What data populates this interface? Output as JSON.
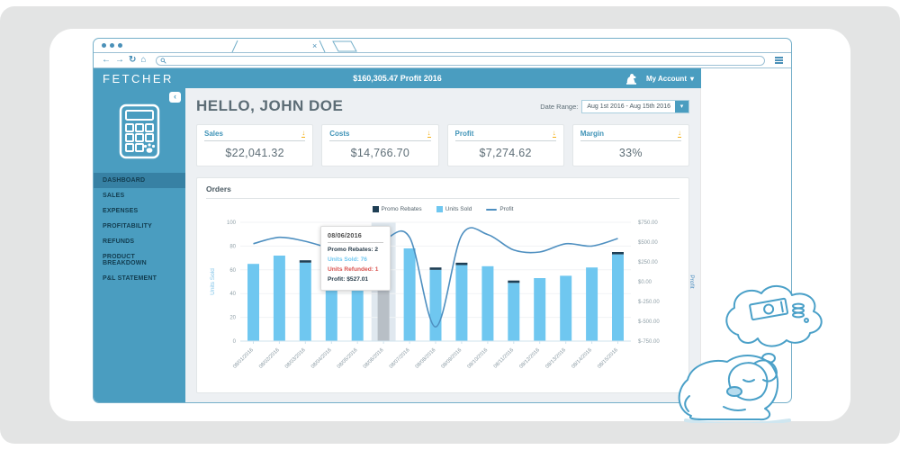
{
  "colors": {
    "teal": "#4a9dc0",
    "teal-dark": "#3781a4",
    "navy": "#1e3e54",
    "bar-blue": "#6fc7f0",
    "line-blue": "#4e8fc0",
    "red": "#d9534f",
    "yellow": "#f2af13",
    "text-gray": "#5c6c75",
    "chrome-blue": "#4a90b8"
  },
  "browser": {
    "tab_close": "×",
    "back_icon": "←",
    "forward_icon": "→",
    "refresh_icon": "↻",
    "home_icon": "⌂",
    "url_value": ""
  },
  "header": {
    "logo": "FETCHER",
    "title": "$160,305.47 Profit 2016",
    "account_label": "My Account",
    "account_chevron": "▾"
  },
  "sidebar": {
    "collapse_icon": "‹",
    "items": [
      {
        "label": "DASHBOARD",
        "active": true
      },
      {
        "label": "SALES",
        "active": false
      },
      {
        "label": "EXPENSES",
        "active": false
      },
      {
        "label": "PROFITABILITY",
        "active": false
      },
      {
        "label": "REFUNDS",
        "active": false
      },
      {
        "label": "PRODUCT BREAKDOWN",
        "active": false
      },
      {
        "label": "P&L STATEMENT",
        "active": false
      }
    ]
  },
  "main": {
    "greeting": "HELLO, JOHN DOE",
    "date_range": {
      "label": "Date Range:",
      "value": "Aug 1st 2016 - Aug 15th 2016",
      "chevron": "▾"
    },
    "kpis": [
      {
        "label": "Sales",
        "value": "$22,041.32"
      },
      {
        "label": "Costs",
        "value": "$14,766.70"
      },
      {
        "label": "Profit",
        "value": "$7,274.62"
      },
      {
        "label": "Margin",
        "value": "33%"
      }
    ],
    "orders_panel_title": "Orders"
  },
  "tooltip": {
    "date": "08/06/2016",
    "lines": [
      {
        "text": "Promo Rebates: 2",
        "color": "#2a3e4c"
      },
      {
        "text": "Units Sold: 76",
        "color": "#6fc7f0"
      },
      {
        "text": "Units Refunded: 1",
        "color": "#d9534f"
      },
      {
        "text": "Profit: $527.01",
        "color": "#2a3e4c"
      }
    ]
  },
  "chart_data": {
    "type": "bar",
    "title": "Orders",
    "categories": [
      "08/01/2016",
      "08/02/2016",
      "08/03/2016",
      "08/04/2016",
      "08/05/2016",
      "08/06/2016",
      "08/07/2016",
      "08/08/2016",
      "08/09/2016",
      "08/10/2016",
      "08/11/2016",
      "08/12/2016",
      "08/13/2016",
      "08/14/2016",
      "08/15/2016"
    ],
    "series": [
      {
        "name": "Promo Rebates",
        "type": "bar-stacked",
        "color": "#1e3e54",
        "axis": "left",
        "values": [
          0,
          0,
          2,
          0,
          0,
          2,
          0,
          2,
          2,
          0,
          2,
          0,
          0,
          0,
          2
        ]
      },
      {
        "name": "Units Sold",
        "type": "bar",
        "color": "#6fc7f0",
        "axis": "left",
        "values": [
          65,
          72,
          66,
          62,
          58,
          76,
          78,
          60,
          64,
          63,
          49,
          53,
          55,
          62,
          73
        ]
      },
      {
        "name": "Profit",
        "type": "line",
        "color": "#4e8fc0",
        "axis": "right",
        "values": [
          480,
          560,
          510,
          420,
          380,
          527.01,
          560,
          -570,
          585,
          595,
          400,
          375,
          480,
          450,
          545
        ]
      }
    ],
    "left_axis": {
      "label": "Units Sold",
      "range": [
        0,
        100
      ],
      "ticks": [
        100,
        80,
        60,
        40,
        20,
        0
      ]
    },
    "right_axis": {
      "label": "Profit",
      "range": [
        -750,
        750
      ],
      "tick_labels": [
        "$750.00",
        "$500.00",
        "$250.00",
        "$0.00",
        "$-250.00",
        "$-500.00",
        "$-750.00"
      ]
    },
    "hover_index": 5,
    "hover_bar_color": "#b8bfc6",
    "legend_position": "top",
    "grid": true
  }
}
